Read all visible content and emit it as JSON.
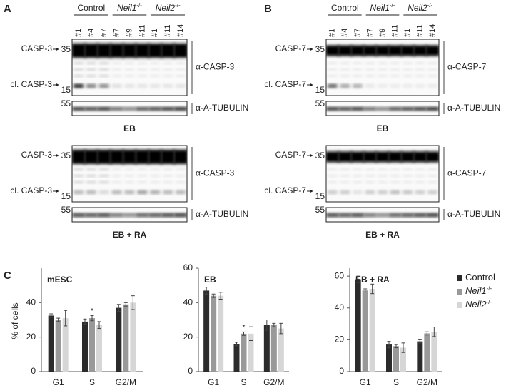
{
  "panels": [
    {
      "label": "A",
      "groups": [
        {
          "name": "Control"
        },
        {
          "name": "Neil1",
          "sup": "-/-"
        },
        {
          "name": "Neil2",
          "sup": "-/-"
        }
      ],
      "lanes": [
        "#1",
        "#4",
        "#7",
        "#7",
        "#9",
        "#11",
        "#1",
        "#11",
        "#14"
      ],
      "sections": [
        {
          "condition": "EB",
          "target": {
            "antibody": "α-CASP-3",
            "full": "CASP-3",
            "cleaved": "cl. CASP-3",
            "markers": [
              35,
              15
            ]
          },
          "loading": {
            "antibody": "α-A-TUBULIN",
            "marker": 55
          }
        },
        {
          "condition": "EB + RA",
          "target": {
            "antibody": "α-CASP-3",
            "full": "CASP-3",
            "cleaved": "cl. CASP-3",
            "markers": [
              35,
              15
            ]
          },
          "loading": {
            "antibody": "α-A-TUBULIN",
            "marker": 55
          }
        }
      ]
    },
    {
      "label": "B",
      "groups": [
        {
          "name": "Control"
        },
        {
          "name": "Neil1",
          "sup": "-/-"
        },
        {
          "name": "Neil2",
          "sup": "-/-"
        }
      ],
      "lanes": [
        "#1",
        "#4",
        "#7",
        "#7",
        "#9",
        "#11",
        "#1",
        "#11",
        "#14"
      ],
      "sections": [
        {
          "condition": "EB",
          "target": {
            "antibody": "α-CASP-7",
            "full": "CASP-7",
            "cleaved": "cl. CASP-7",
            "markers": [
              35,
              15
            ]
          },
          "loading": {
            "antibody": "α-A-TUBULIN",
            "marker": 55
          }
        },
        {
          "condition": "EB + RA",
          "target": {
            "antibody": "α-CASP-7",
            "full": "CASP-7",
            "cleaved": "cl. CASP-7",
            "markers": [
              35,
              15
            ]
          },
          "loading": {
            "antibody": "α-A-TUBULIN",
            "marker": 55
          }
        }
      ]
    }
  ],
  "panel_c": {
    "label": "C"
  },
  "chart_data": [
    {
      "type": "bar",
      "title": "mESC",
      "ylabel": "% of cells",
      "categories": [
        "G1",
        "S",
        "G2/M"
      ],
      "ylim": [
        0,
        60
      ],
      "yticks": [
        0,
        20,
        40
      ],
      "series": [
        {
          "color": "#2b2b2b",
          "values": [
            32.5,
            29,
            37
          ],
          "errors": [
            1,
            1.5,
            2
          ]
        },
        {
          "color": "#999999",
          "values": [
            30,
            31,
            39
          ],
          "errors": [
            1,
            1.5,
            1
          ]
        },
        {
          "color": "#d6d6d6",
          "values": [
            31,
            27,
            40
          ],
          "errors": [
            4.5,
            2,
            4
          ]
        }
      ],
      "annotations": [
        {
          "text": "*",
          "series": 1,
          "category": 1
        }
      ]
    },
    {
      "type": "bar",
      "title": "EB",
      "categories": [
        "G1",
        "S",
        "G2/M"
      ],
      "ylim": [
        0,
        60
      ],
      "yticks": [
        0,
        20,
        40,
        60
      ],
      "series": [
        {
          "color": "#2b2b2b",
          "values": [
            47,
            16,
            27
          ],
          "errors": [
            2,
            1,
            3
          ]
        },
        {
          "color": "#999999",
          "values": [
            44,
            22,
            27
          ],
          "errors": [
            1,
            1,
            1
          ]
        },
        {
          "color": "#d6d6d6",
          "values": [
            44,
            22,
            25
          ],
          "errors": [
            2,
            4,
            3
          ]
        }
      ],
      "annotations": [
        {
          "text": "*",
          "series": 1,
          "category": 1
        }
      ]
    },
    {
      "type": "bar",
      "title": "EB + RA",
      "categories": [
        "G1",
        "S",
        "G2/M"
      ],
      "ylim": [
        0,
        65
      ],
      "yticks": [
        0,
        20,
        40,
        60
      ],
      "legend": "right",
      "series": [
        {
          "name": "Control",
          "color": "#2b2b2b",
          "values": [
            58,
            17,
            19
          ],
          "errors": [
            2,
            2,
            1
          ]
        },
        {
          "name": "Neil1",
          "sup": "-/-",
          "color": "#999999",
          "values": [
            51,
            16,
            24
          ],
          "errors": [
            1,
            1,
            1
          ]
        },
        {
          "name": "Neil2",
          "sup": "-/-",
          "color": "#d6d6d6",
          "values": [
            52,
            15,
            25
          ],
          "errors": [
            3,
            3,
            3
          ]
        }
      ]
    }
  ]
}
